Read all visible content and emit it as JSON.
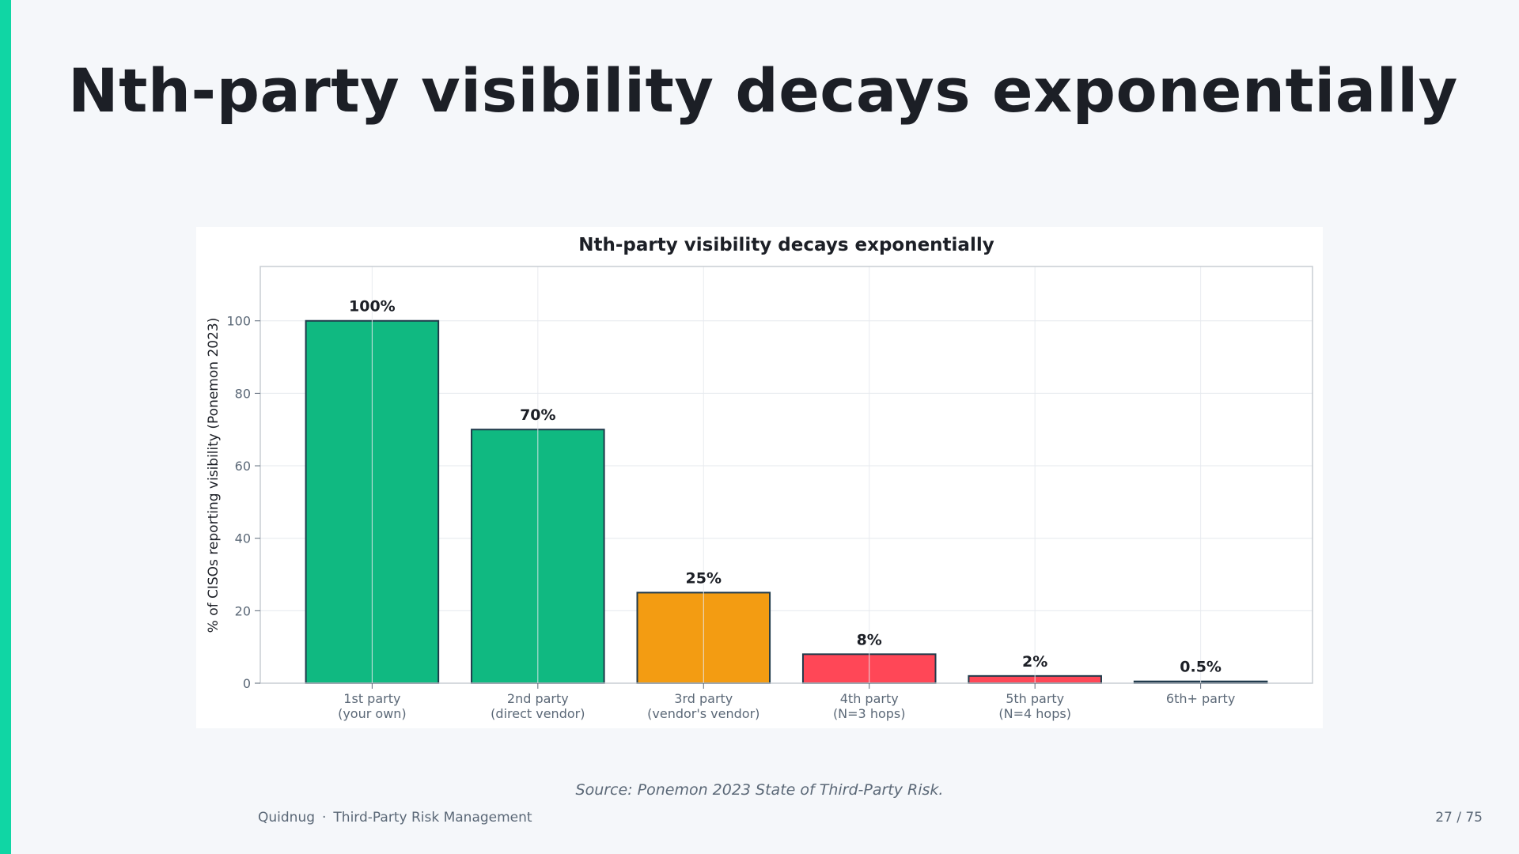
{
  "slide": {
    "title": "Nth-party visibility decays exponentially",
    "source": "Source: Ponemon 2023 State of Third-Party Risk.",
    "footer_brand": "Quidnug",
    "footer_separator": "·",
    "footer_deck": "Third-Party Risk Management",
    "page": "27 / 75",
    "accent_color": "#10d6a4"
  },
  "chart_data": {
    "type": "bar",
    "title": "Nth-party visibility decays exponentially",
    "xlabel": "",
    "ylabel": "% of CISOs reporting visibility (Ponemon 2023)",
    "ylim": [
      0,
      115
    ],
    "yticks": [
      0,
      20,
      40,
      60,
      80,
      100
    ],
    "grid": true,
    "categories": [
      [
        "1st party",
        "(your own)"
      ],
      [
        "2nd party",
        "(direct vendor)"
      ],
      [
        "3rd party",
        "(vendor's vendor)"
      ],
      [
        "4th party",
        "(N=3 hops)"
      ],
      [
        "5th party",
        "(N=4 hops)"
      ],
      [
        "6th+ party"
      ]
    ],
    "values": [
      100,
      70,
      25,
      8,
      2,
      0.5
    ],
    "data_labels": [
      "100%",
      "70%",
      "25%",
      "8%",
      "2%",
      "0.5%"
    ],
    "colors": [
      "#10b981",
      "#10b981",
      "#f39c12",
      "#ff4757",
      "#ff4757",
      "#3a4a6b"
    ]
  }
}
